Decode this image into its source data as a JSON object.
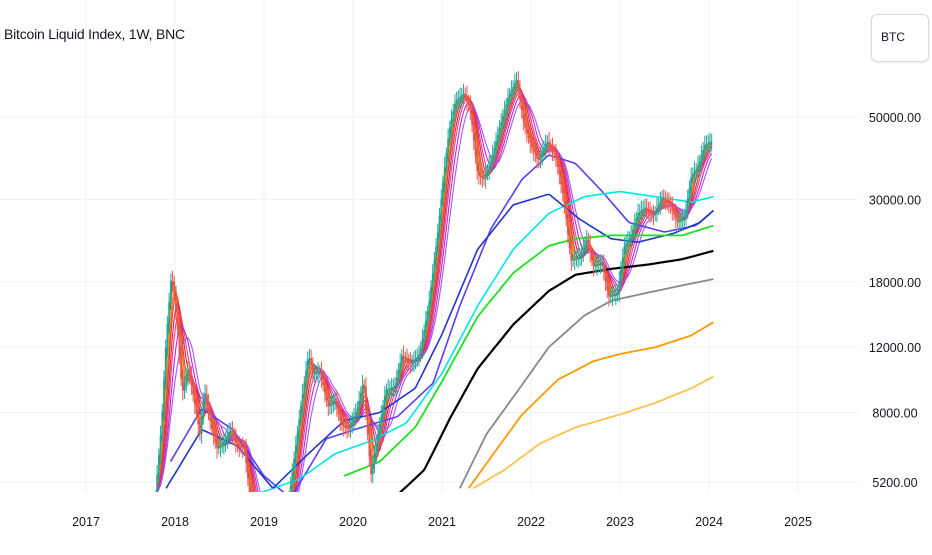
{
  "header": {
    "title": "Bitcoin Liquid Index, 1W, BNC"
  },
  "symbol_button": {
    "label": "BTC"
  },
  "chart_data": {
    "type": "line",
    "title": "Bitcoin Liquid Index, 1W, BNC",
    "price_scale": "log",
    "ylim": [
      5000,
      72000
    ],
    "xlim": [
      2016.6,
      2025.6
    ],
    "y_ticks": [
      5200,
      8000,
      12000,
      18000,
      30000,
      50000
    ],
    "y_tick_labels": [
      "5200.00",
      "8000.00",
      "12000.00",
      "18000.00",
      "30000.00",
      "50000.00"
    ],
    "x_ticks": [
      "2017",
      "2018",
      "2019",
      "2020",
      "2021",
      "2022",
      "2023",
      "2024",
      "2025"
    ],
    "x_tick_values": [
      2017,
      2018,
      2019,
      2020,
      2021,
      2022,
      2023,
      2024,
      2025
    ],
    "grid": true,
    "colors": {
      "grid": "#eef0f3",
      "axis_text": "#131722",
      "up_candle": "#26a69a",
      "down_candle": "#ef5350"
    },
    "price_path": [
      [
        2017.78,
        4800
      ],
      [
        2017.85,
        7500
      ],
      [
        2017.9,
        12500
      ],
      [
        2017.96,
        19000
      ],
      [
        2018.02,
        14500
      ],
      [
        2018.08,
        9000
      ],
      [
        2018.15,
        10500
      ],
      [
        2018.22,
        8500
      ],
      [
        2018.28,
        7000
      ],
      [
        2018.33,
        9200
      ],
      [
        2018.4,
        7500
      ],
      [
        2018.47,
        6400
      ],
      [
        2018.55,
        6600
      ],
      [
        2018.62,
        7200
      ],
      [
        2018.7,
        6500
      ],
      [
        2018.78,
        6400
      ],
      [
        2018.87,
        4200
      ],
      [
        2018.95,
        3500
      ],
      [
        2019.05,
        3600
      ],
      [
        2019.15,
        3900
      ],
      [
        2019.25,
        4100
      ],
      [
        2019.33,
        5800
      ],
      [
        2019.42,
        8500
      ],
      [
        2019.5,
        11500
      ],
      [
        2019.55,
        10200
      ],
      [
        2019.63,
        10300
      ],
      [
        2019.72,
        8300
      ],
      [
        2019.8,
        8600
      ],
      [
        2019.87,
        7400
      ],
      [
        2019.95,
        7200
      ],
      [
        2020.05,
        8200
      ],
      [
        2020.12,
        9800
      ],
      [
        2020.2,
        5400
      ],
      [
        2020.28,
        7000
      ],
      [
        2020.37,
        9200
      ],
      [
        2020.47,
        9400
      ],
      [
        2020.55,
        11400
      ],
      [
        2020.65,
        10800
      ],
      [
        2020.75,
        11500
      ],
      [
        2020.85,
        15500
      ],
      [
        2020.95,
        24000
      ],
      [
        2021.02,
        35000
      ],
      [
        2021.08,
        46000
      ],
      [
        2021.15,
        55000
      ],
      [
        2021.25,
        58000
      ],
      [
        2021.32,
        52000
      ],
      [
        2021.4,
        35000
      ],
      [
        2021.47,
        34000
      ],
      [
        2021.55,
        38000
      ],
      [
        2021.65,
        47000
      ],
      [
        2021.75,
        57000
      ],
      [
        2021.84,
        63000
      ],
      [
        2021.92,
        48000
      ],
      [
        2022.0,
        42000
      ],
      [
        2022.08,
        38000
      ],
      [
        2022.18,
        43000
      ],
      [
        2022.28,
        39000
      ],
      [
        2022.37,
        30000
      ],
      [
        2022.45,
        20500
      ],
      [
        2022.55,
        21000
      ],
      [
        2022.63,
        23500
      ],
      [
        2022.7,
        19800
      ],
      [
        2022.8,
        20200
      ],
      [
        2022.87,
        16400
      ],
      [
        2022.97,
        16700
      ],
      [
        2023.05,
        22500
      ],
      [
        2023.12,
        23800
      ],
      [
        2023.2,
        27500
      ],
      [
        2023.28,
        28500
      ],
      [
        2023.37,
        27000
      ],
      [
        2023.47,
        30200
      ],
      [
        2023.55,
        29300
      ],
      [
        2023.65,
        26000
      ],
      [
        2023.73,
        27000
      ],
      [
        2023.8,
        34500
      ],
      [
        2023.88,
        37000
      ],
      [
        2023.95,
        42000
      ],
      [
        2024.03,
        43000
      ]
    ],
    "series": [
      {
        "color": "#5b3df5",
        "values": [
          [
            2017.95,
            5900
          ],
          [
            2018.3,
            8200
          ],
          [
            2018.65,
            7200
          ],
          [
            2019.0,
            5400
          ],
          [
            2019.3,
            4700
          ],
          [
            2019.7,
            6800
          ],
          [
            2020.1,
            7300
          ],
          [
            2020.5,
            7800
          ],
          [
            2020.9,
            9600
          ],
          [
            2021.2,
            15500
          ],
          [
            2021.55,
            25000
          ],
          [
            2021.9,
            34000
          ],
          [
            2022.2,
            39500
          ],
          [
            2022.5,
            37500
          ],
          [
            2022.8,
            31500
          ],
          [
            2023.1,
            26000
          ],
          [
            2023.5,
            24500
          ],
          [
            2023.85,
            25500
          ],
          [
            2024.05,
            28000
          ]
        ]
      },
      {
        "color": "#00e5e5",
        "values": [
          [
            2018.5,
            4500
          ],
          [
            2019.0,
            4900
          ],
          [
            2019.4,
            5300
          ],
          [
            2019.8,
            6200
          ],
          [
            2020.2,
            6700
          ],
          [
            2020.6,
            7500
          ],
          [
            2021.0,
            10200
          ],
          [
            2021.4,
            15500
          ],
          [
            2021.8,
            22000
          ],
          [
            2022.2,
            27500
          ],
          [
            2022.6,
            30500
          ],
          [
            2023.0,
            31500
          ],
          [
            2023.4,
            30500
          ],
          [
            2023.8,
            29500
          ],
          [
            2024.05,
            30500
          ]
        ]
      },
      {
        "color": "#2235c9",
        "values": [
          [
            2017.9,
            5000
          ],
          [
            2018.3,
            7200
          ],
          [
            2018.7,
            6500
          ],
          [
            2019.1,
            5000
          ],
          [
            2019.5,
            6200
          ],
          [
            2019.9,
            7600
          ],
          [
            2020.3,
            8000
          ],
          [
            2020.7,
            9300
          ],
          [
            2021.0,
            13000
          ],
          [
            2021.4,
            22000
          ],
          [
            2021.8,
            29000
          ],
          [
            2022.2,
            31000
          ],
          [
            2022.55,
            26500
          ],
          [
            2022.9,
            23500
          ],
          [
            2023.2,
            23000
          ],
          [
            2023.6,
            24300
          ],
          [
            2023.9,
            26000
          ],
          [
            2024.05,
            28000
          ]
        ]
      },
      {
        "color": "#1fe01f",
        "values": [
          [
            2019.9,
            5400
          ],
          [
            2020.3,
            5900
          ],
          [
            2020.7,
            7300
          ],
          [
            2021.0,
            9700
          ],
          [
            2021.4,
            14500
          ],
          [
            2021.8,
            19000
          ],
          [
            2022.2,
            22500
          ],
          [
            2022.5,
            23500
          ],
          [
            2022.9,
            24000
          ],
          [
            2023.3,
            24000
          ],
          [
            2023.7,
            24000
          ],
          [
            2024.05,
            25500
          ]
        ]
      },
      {
        "color": "#000000",
        "values": [
          [
            2020.5,
            4800
          ],
          [
            2020.8,
            5600
          ],
          [
            2021.1,
            7800
          ],
          [
            2021.4,
            10500
          ],
          [
            2021.8,
            13800
          ],
          [
            2022.2,
            17000
          ],
          [
            2022.5,
            18800
          ],
          [
            2022.9,
            19500
          ],
          [
            2023.3,
            20000
          ],
          [
            2023.7,
            20700
          ],
          [
            2024.05,
            21800
          ]
        ]
      },
      {
        "color": "#888888",
        "values": [
          [
            2021.2,
            5000
          ],
          [
            2021.5,
            7000
          ],
          [
            2021.9,
            9500
          ],
          [
            2022.2,
            12000
          ],
          [
            2022.6,
            14600
          ],
          [
            2022.9,
            16000
          ],
          [
            2023.3,
            16800
          ],
          [
            2023.7,
            17600
          ],
          [
            2024.05,
            18300
          ]
        ]
      },
      {
        "color": "#ff9900",
        "values": [
          [
            2021.3,
            5000
          ],
          [
            2021.6,
            6300
          ],
          [
            2021.9,
            7900
          ],
          [
            2022.3,
            9800
          ],
          [
            2022.7,
            11000
          ],
          [
            2023.0,
            11500
          ],
          [
            2023.4,
            12000
          ],
          [
            2023.8,
            12900
          ],
          [
            2024.05,
            14000
          ]
        ]
      },
      {
        "color": "#ffc24d",
        "values": [
          [
            2021.35,
            5000
          ],
          [
            2021.7,
            5600
          ],
          [
            2022.1,
            6600
          ],
          [
            2022.5,
            7300
          ],
          [
            2023.0,
            7900
          ],
          [
            2023.4,
            8500
          ],
          [
            2023.8,
            9300
          ],
          [
            2024.05,
            10000
          ]
        ]
      }
    ]
  }
}
